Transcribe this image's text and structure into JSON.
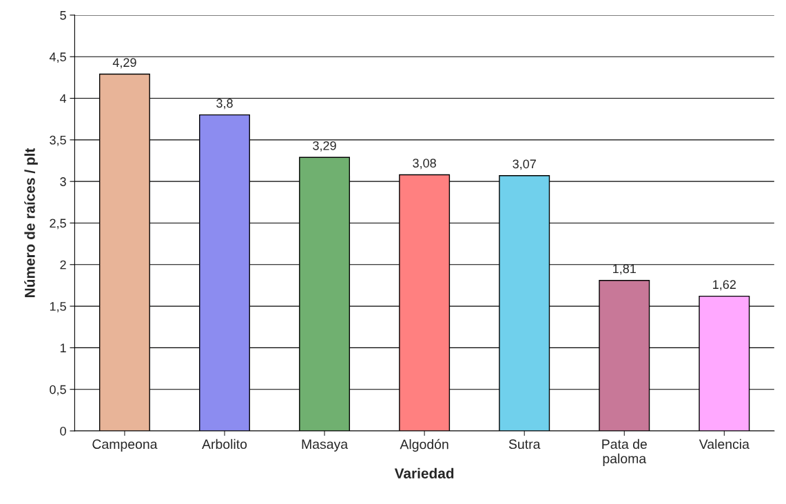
{
  "chart_data": {
    "type": "bar",
    "xlabel": "Variedad",
    "ylabel": "Número de raíces / plt",
    "categories": [
      "Campeona",
      "Arbolito",
      "Masaya",
      "Algodón",
      "Sutra",
      "Pata de\npaloma",
      "Valencia"
    ],
    "values": [
      4.29,
      3.8,
      3.29,
      3.08,
      3.07,
      1.81,
      1.62
    ],
    "colors": [
      "#e8b498",
      "#8c8cf0",
      "#70b070",
      "#ff8080",
      "#70d0ec",
      "#c87898",
      "#ffa8ff"
    ],
    "value_labels": [
      "4,29",
      "3,8",
      "3,29",
      "3,08",
      "3,07",
      "1,81",
      "1,62"
    ],
    "ylim": [
      0,
      5
    ],
    "yticks": [
      0,
      {
        "value": 0.5,
        "label": "0,5"
      },
      1,
      {
        "value": 1.5,
        "label": "1,5"
      },
      2,
      {
        "value": 2.5,
        "label": "2,5"
      },
      3,
      {
        "value": 3.5,
        "label": "3,5"
      },
      4,
      {
        "value": 4.5,
        "label": "4,5"
      },
      5
    ],
    "grid": "y",
    "legend": false
  }
}
